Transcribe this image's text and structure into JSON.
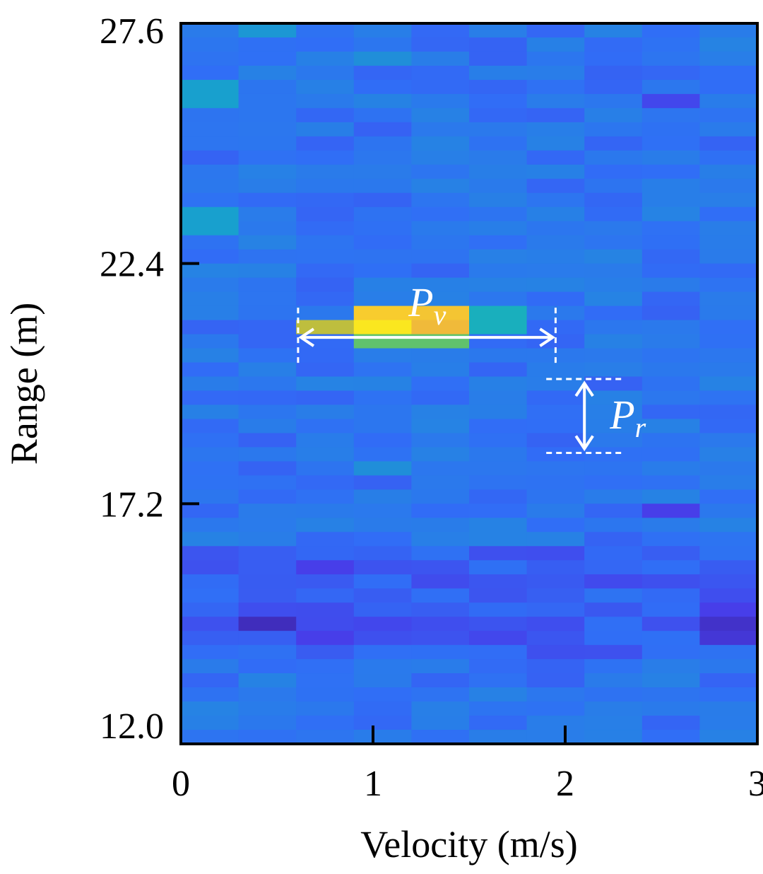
{
  "chart_data": {
    "type": "heatmap",
    "title": "",
    "xlabel": "Velocity (m/s)",
    "ylabel": "Range (m)",
    "xlim": [
      0,
      3
    ],
    "ylim": [
      12.0,
      27.6
    ],
    "x_ticks": [
      "0",
      "1",
      "2",
      "3"
    ],
    "y_ticks": [
      "12.0",
      "17.2",
      "22.4",
      "27.6"
    ],
    "colormap": "parula",
    "bins": {
      "velocity_columns": 10,
      "range_rows": 51
    },
    "background_level": 0.22,
    "cells": [
      {
        "col": 2,
        "row": 21,
        "value": 0.72
      },
      {
        "col": 3,
        "row": 20,
        "value": 0.87
      },
      {
        "col": 3,
        "row": 21,
        "value": 0.95
      },
      {
        "col": 3,
        "row": 22,
        "value": 0.58
      },
      {
        "col": 4,
        "row": 20,
        "value": 0.84
      },
      {
        "col": 4,
        "row": 21,
        "value": 0.8
      },
      {
        "col": 4,
        "row": 22,
        "value": 0.58
      },
      {
        "col": 5,
        "row": 20,
        "value": 0.42
      },
      {
        "col": 5,
        "row": 21,
        "value": 0.42
      },
      {
        "col": 0,
        "row": 13,
        "value": 0.36
      },
      {
        "col": 0,
        "row": 14,
        "value": 0.36
      },
      {
        "col": 0,
        "row": 4,
        "value": 0.36
      },
      {
        "col": 0,
        "row": 5,
        "value": 0.36
      },
      {
        "col": 1,
        "row": 0,
        "value": 0.33
      },
      {
        "col": 3,
        "row": 2,
        "value": 0.3
      },
      {
        "col": 3,
        "row": 31,
        "value": 0.3
      },
      {
        "col": 1,
        "row": 42,
        "value": 0.03
      },
      {
        "col": 9,
        "row": 42,
        "value": 0.05
      },
      {
        "col": 9,
        "row": 43,
        "value": 0.07
      },
      {
        "col": 9,
        "row": 41,
        "value": 0.1
      },
      {
        "col": 2,
        "row": 38,
        "value": 0.1
      },
      {
        "col": 2,
        "row": 43,
        "value": 0.1
      },
      {
        "col": 8,
        "row": 34,
        "value": 0.1
      },
      {
        "col": 8,
        "row": 5,
        "value": 0.12
      },
      {
        "col": 3,
        "row": 42,
        "value": 0.12
      },
      {
        "col": 5,
        "row": 43,
        "value": 0.12
      },
      {
        "col": 8,
        "row": 42,
        "value": 0.14
      },
      {
        "col": 9,
        "row": 39,
        "value": 0.15
      },
      {
        "col": 0,
        "row": 42,
        "value": 0.14
      },
      {
        "col": 0,
        "row": 38,
        "value": 0.14
      }
    ],
    "annotations": [
      {
        "label": "P",
        "subscript": "v",
        "kind": "horizontal-span",
        "x_from": 0.61,
        "x_to": 1.95,
        "y": 20.8
      },
      {
        "label": "P",
        "subscript": "r",
        "kind": "vertical-span",
        "x": 2.1,
        "y_from": 18.3,
        "y_to": 19.9
      }
    ]
  }
}
